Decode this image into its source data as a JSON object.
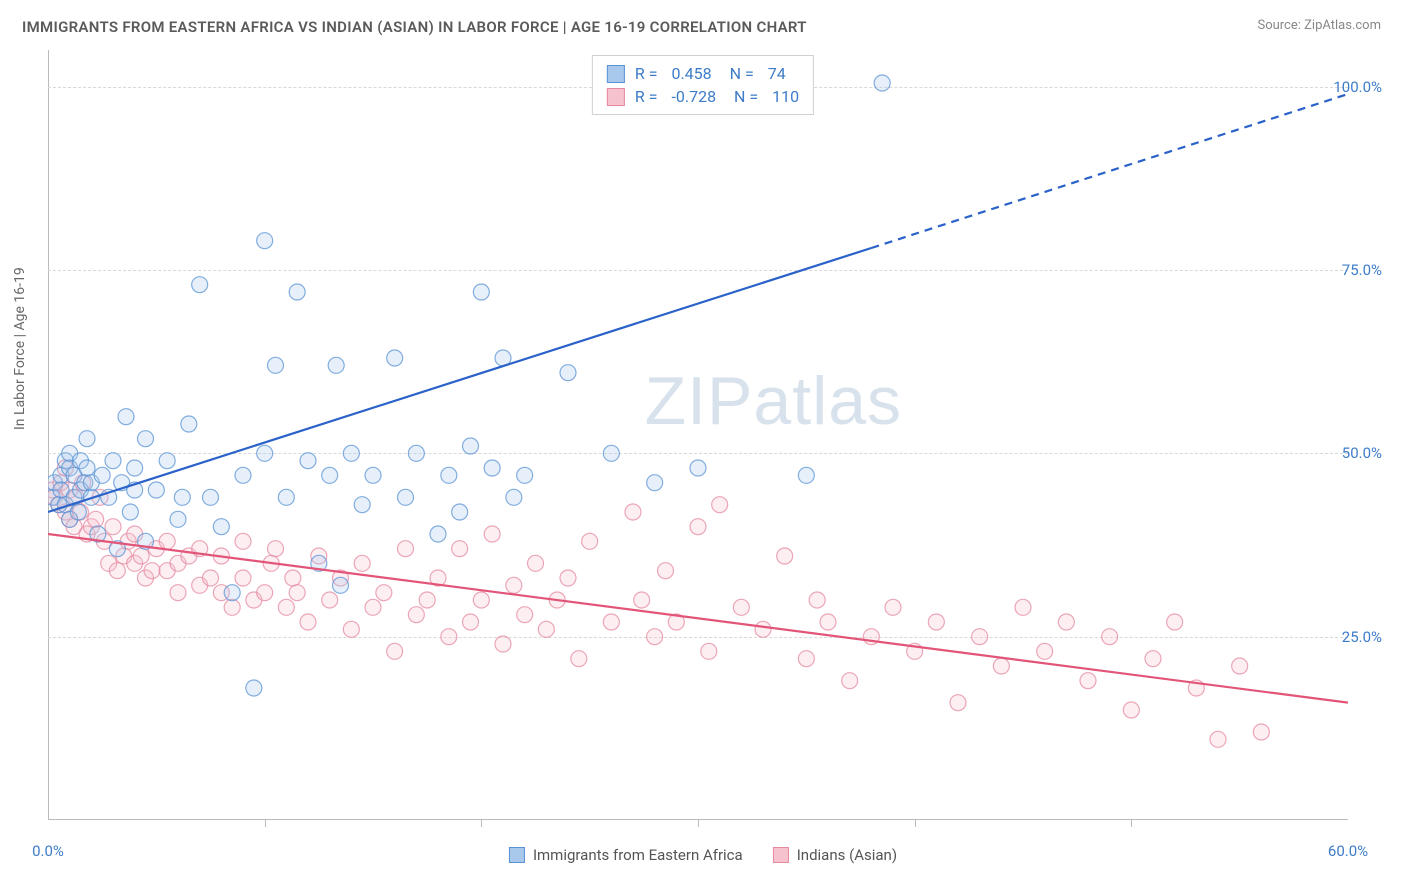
{
  "title": "IMMIGRANTS FROM EASTERN AFRICA VS INDIAN (ASIAN) IN LABOR FORCE | AGE 16-19 CORRELATION CHART",
  "source_label": "Source: ZipAtlas.com",
  "watermark_text": "ZIPatlas",
  "chart": {
    "type": "scatter-with-regression",
    "ylabel": "In Labor Force | Age 16-19",
    "xlim": [
      0,
      60
    ],
    "ylim": [
      0,
      105
    ],
    "xtick_values": [
      0,
      60
    ],
    "xtick_labels": [
      "0.0%",
      "60.0%"
    ],
    "xtick_minor": [
      10,
      20,
      30,
      40,
      50
    ],
    "ytick_values": [
      25,
      50,
      75,
      100
    ],
    "ytick_labels": [
      "25.0%",
      "50.0%",
      "75.0%",
      "100.0%"
    ],
    "background_color": "#ffffff",
    "grid_color": "#d8d8d8",
    "axis_color": "#bbbbbb",
    "tick_label_color": "#3d7cc9",
    "ylabel_color": "#666666",
    "title_color": "#5a5a5a",
    "title_fontsize": 15,
    "label_fontsize": 14,
    "tick_fontsize": 15,
    "marker_radius": 8,
    "marker_fill_opacity": 0.28,
    "marker_stroke_opacity": 0.75,
    "marker_stroke_width": 1.2,
    "line_width": 2.2,
    "series": [
      {
        "name": "Immigrants from Eastern Africa",
        "color_fill": "#a8c8ec",
        "color_stroke": "#5a93d4",
        "line_color": "#2a62c9",
        "R": 0.458,
        "N": 74,
        "regression": {
          "x1": 0,
          "y1": 42,
          "x2_solid": 38,
          "y2_solid": 78,
          "x2_dash": 60,
          "y2_dash": 99
        },
        "points": [
          [
            0.2,
            44
          ],
          [
            0.3,
            46
          ],
          [
            0.5,
            43
          ],
          [
            0.6,
            47
          ],
          [
            0.6,
            45
          ],
          [
            0.8,
            49
          ],
          [
            0.8,
            43
          ],
          [
            1.0,
            48
          ],
          [
            1.0,
            41
          ],
          [
            1.0,
            50
          ],
          [
            1.2,
            44
          ],
          [
            1.2,
            47
          ],
          [
            1.4,
            42
          ],
          [
            1.5,
            49
          ],
          [
            1.5,
            45
          ],
          [
            1.7,
            46
          ],
          [
            1.8,
            52
          ],
          [
            1.8,
            48
          ],
          [
            2.0,
            44
          ],
          [
            2.0,
            46
          ],
          [
            2.3,
            39
          ],
          [
            2.5,
            47
          ],
          [
            2.8,
            44
          ],
          [
            3.0,
            49
          ],
          [
            3.2,
            37
          ],
          [
            3.4,
            46
          ],
          [
            3.6,
            55
          ],
          [
            3.8,
            42
          ],
          [
            4.0,
            48
          ],
          [
            4.0,
            45
          ],
          [
            4.5,
            52
          ],
          [
            4.5,
            38
          ],
          [
            5.0,
            45
          ],
          [
            5.5,
            49
          ],
          [
            6.0,
            41
          ],
          [
            6.2,
            44
          ],
          [
            6.5,
            54
          ],
          [
            7.0,
            73
          ],
          [
            7.5,
            44
          ],
          [
            8.0,
            40
          ],
          [
            8.5,
            31
          ],
          [
            9.0,
            47
          ],
          [
            9.5,
            18
          ],
          [
            10.0,
            79
          ],
          [
            10.0,
            50
          ],
          [
            10.5,
            62
          ],
          [
            11.0,
            44
          ],
          [
            11.5,
            72
          ],
          [
            12.0,
            49
          ],
          [
            12.5,
            35
          ],
          [
            13.0,
            47
          ],
          [
            13.3,
            62
          ],
          [
            13.5,
            32
          ],
          [
            14.0,
            50
          ],
          [
            14.5,
            43
          ],
          [
            15.0,
            47
          ],
          [
            16.0,
            63
          ],
          [
            16.5,
            44
          ],
          [
            17.0,
            50
          ],
          [
            18.0,
            39
          ],
          [
            18.5,
            47
          ],
          [
            19.0,
            42
          ],
          [
            19.5,
            51
          ],
          [
            20.0,
            72
          ],
          [
            20.5,
            48
          ],
          [
            21.0,
            63
          ],
          [
            21.5,
            44
          ],
          [
            22.0,
            47
          ],
          [
            24.0,
            61
          ],
          [
            26.0,
            50
          ],
          [
            28.0,
            46
          ],
          [
            30.0,
            48
          ],
          [
            35.0,
            47
          ],
          [
            38.5,
            100.5
          ]
        ]
      },
      {
        "name": "Indians (Asian)",
        "color_fill": "#f5c2cd",
        "color_stroke": "#e68aa0",
        "line_color": "#e25578",
        "R": -0.728,
        "N": 110,
        "regression": {
          "x1": 0,
          "y1": 39,
          "x2_solid": 60,
          "y2_solid": 16,
          "x2_dash": 60,
          "y2_dash": 16
        },
        "points": [
          [
            0.2,
            45
          ],
          [
            0.3,
            44
          ],
          [
            0.5,
            43
          ],
          [
            0.6,
            46
          ],
          [
            0.8,
            42
          ],
          [
            0.8,
            48
          ],
          [
            1.0,
            41
          ],
          [
            1.0,
            45
          ],
          [
            1.2,
            40
          ],
          [
            1.3,
            44
          ],
          [
            1.5,
            42
          ],
          [
            1.6,
            46
          ],
          [
            1.8,
            39
          ],
          [
            2.0,
            40
          ],
          [
            2.2,
            41
          ],
          [
            2.4,
            44
          ],
          [
            2.6,
            38
          ],
          [
            2.8,
            35
          ],
          [
            3.0,
            40
          ],
          [
            3.2,
            34
          ],
          [
            3.5,
            36
          ],
          [
            3.7,
            38
          ],
          [
            4.0,
            35
          ],
          [
            4.0,
            39
          ],
          [
            4.3,
            36
          ],
          [
            4.5,
            33
          ],
          [
            4.8,
            34
          ],
          [
            5.0,
            37
          ],
          [
            5.5,
            34
          ],
          [
            5.5,
            38
          ],
          [
            6.0,
            35
          ],
          [
            6.0,
            31
          ],
          [
            6.5,
            36
          ],
          [
            7.0,
            32
          ],
          [
            7.0,
            37
          ],
          [
            7.5,
            33
          ],
          [
            8.0,
            31
          ],
          [
            8.0,
            36
          ],
          [
            8.5,
            29
          ],
          [
            9.0,
            33
          ],
          [
            9.0,
            38
          ],
          [
            9.5,
            30
          ],
          [
            10.0,
            31
          ],
          [
            10.3,
            35
          ],
          [
            10.5,
            37
          ],
          [
            11.0,
            29
          ],
          [
            11.3,
            33
          ],
          [
            11.5,
            31
          ],
          [
            12.0,
            27
          ],
          [
            12.5,
            36
          ],
          [
            13.0,
            30
          ],
          [
            13.5,
            33
          ],
          [
            14.0,
            26
          ],
          [
            14.5,
            35
          ],
          [
            15.0,
            29
          ],
          [
            15.5,
            31
          ],
          [
            16.0,
            23
          ],
          [
            16.5,
            37
          ],
          [
            17.0,
            28
          ],
          [
            17.5,
            30
          ],
          [
            18.0,
            33
          ],
          [
            18.5,
            25
          ],
          [
            19.0,
            37
          ],
          [
            19.5,
            27
          ],
          [
            20.0,
            30
          ],
          [
            20.5,
            39
          ],
          [
            21.0,
            24
          ],
          [
            21.5,
            32
          ],
          [
            22.0,
            28
          ],
          [
            22.5,
            35
          ],
          [
            23.0,
            26
          ],
          [
            23.5,
            30
          ],
          [
            24.0,
            33
          ],
          [
            24.5,
            22
          ],
          [
            25.0,
            38
          ],
          [
            26.0,
            27
          ],
          [
            27.0,
            42
          ],
          [
            27.4,
            30
          ],
          [
            28.0,
            25
          ],
          [
            28.5,
            34
          ],
          [
            29.0,
            27
          ],
          [
            30.0,
            40
          ],
          [
            30.5,
            23
          ],
          [
            31.0,
            43
          ],
          [
            32.0,
            29
          ],
          [
            33.0,
            26
          ],
          [
            34.0,
            36
          ],
          [
            35.0,
            22
          ],
          [
            35.5,
            30
          ],
          [
            36.0,
            27
          ],
          [
            37.0,
            19
          ],
          [
            38.0,
            25
          ],
          [
            39.0,
            29
          ],
          [
            40.0,
            23
          ],
          [
            41.0,
            27
          ],
          [
            42.0,
            16
          ],
          [
            43.0,
            25
          ],
          [
            44.0,
            21
          ],
          [
            45.0,
            29
          ],
          [
            46.0,
            23
          ],
          [
            47.0,
            27
          ],
          [
            48.0,
            19
          ],
          [
            49.0,
            25
          ],
          [
            50.0,
            15
          ],
          [
            51.0,
            22
          ],
          [
            52.0,
            27
          ],
          [
            53.0,
            18
          ],
          [
            54.0,
            11
          ],
          [
            55.0,
            21
          ],
          [
            56.0,
            12
          ]
        ]
      }
    ],
    "legend_bottom": [
      {
        "label": "Immigrants from Eastern Africa",
        "fill": "#a8c8ec",
        "stroke": "#5a93d4"
      },
      {
        "label": "Indians (Asian)",
        "fill": "#f5c2cd",
        "stroke": "#e68aa0"
      }
    ]
  }
}
